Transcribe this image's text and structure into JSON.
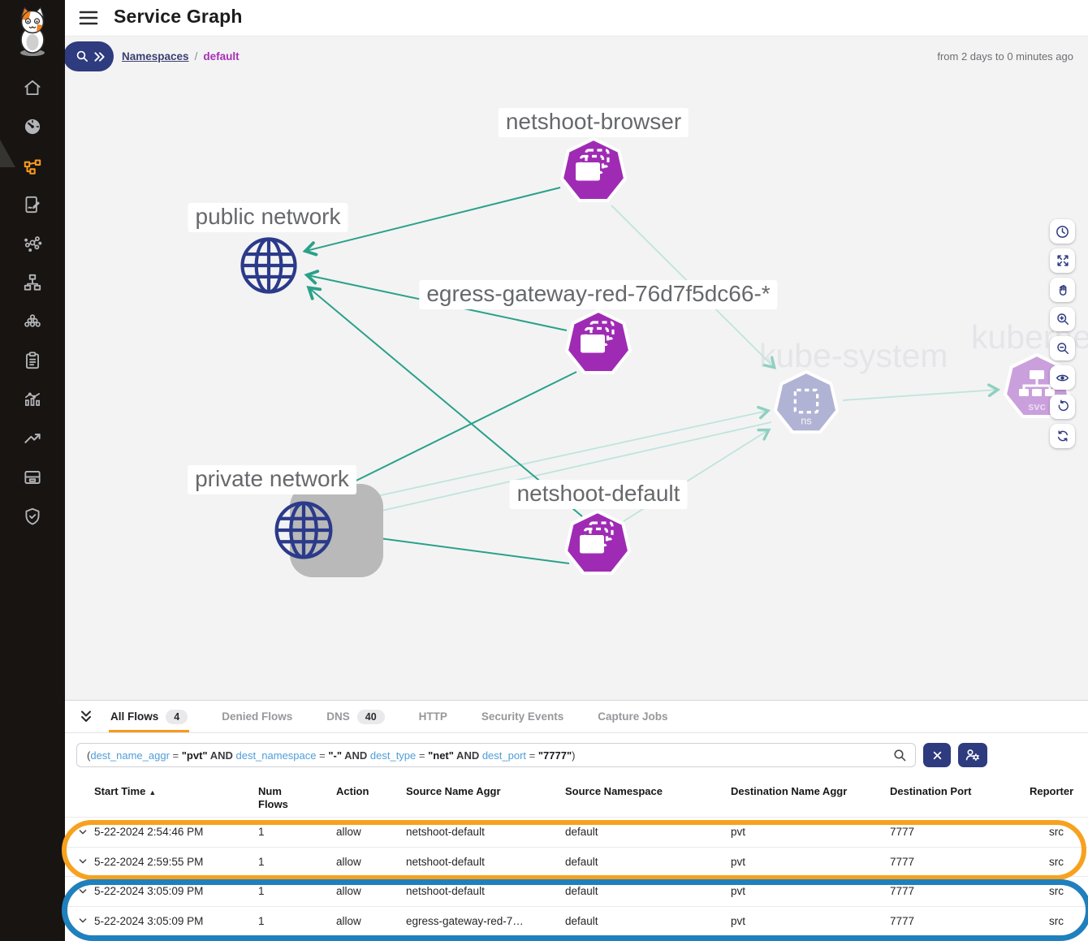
{
  "header": {
    "title": "Service Graph"
  },
  "breadcrumb": {
    "root": "Namespaces",
    "separator": "/",
    "current": "default"
  },
  "time_range": "from 2 days to 0 minutes ago",
  "sidebar": {
    "icons": [
      "home",
      "dashboard",
      "service-graph",
      "policies",
      "endpoints",
      "network-sets",
      "clusters",
      "compliance",
      "reports",
      "trends",
      "storage",
      "security"
    ],
    "active": "service-graph"
  },
  "graph": {
    "nodes": [
      {
        "id": "netshoot-browser",
        "label": "netshoot-browser",
        "type": "replicaset"
      },
      {
        "id": "public-network",
        "label": "public network",
        "type": "network"
      },
      {
        "id": "egress-gateway",
        "label": "egress-gateway-red-76d7f5dc66-*",
        "type": "replicaset"
      },
      {
        "id": "kube-system",
        "label": "kube-system",
        "type": "namespace",
        "sub": "ns"
      },
      {
        "id": "kubernetes",
        "label": "kubernetes",
        "type": "service",
        "sub": "svc"
      },
      {
        "id": "private-network",
        "label": "private network",
        "type": "network",
        "selected": true
      },
      {
        "id": "netshoot-default",
        "label": "netshoot-default",
        "type": "replicaset"
      }
    ]
  },
  "view_controls": [
    "time-settings",
    "fit-to-view",
    "pan",
    "zoom-in",
    "zoom-out",
    "visibility",
    "undo",
    "refresh"
  ],
  "panel": {
    "tabs": [
      {
        "label": "All Flows",
        "badge": "4",
        "active": true
      },
      {
        "label": "Denied Flows",
        "active": false
      },
      {
        "label": "DNS",
        "badge": "40",
        "active": false
      },
      {
        "label": "HTTP",
        "active": false
      },
      {
        "label": "Security Events",
        "active": false
      },
      {
        "label": "Capture Jobs",
        "active": false
      }
    ],
    "filter": {
      "tokens": [
        {
          "t": "(",
          "c": "p"
        },
        {
          "t": "dest_name_aggr",
          "c": "f"
        },
        {
          "t": " = ",
          "c": "o"
        },
        {
          "t": "\"pvt\"",
          "c": "v"
        },
        {
          "t": " AND ",
          "c": "k"
        },
        {
          "t": "dest_namespace",
          "c": "f"
        },
        {
          "t": " = ",
          "c": "o"
        },
        {
          "t": "\"-\"",
          "c": "v"
        },
        {
          "t": " AND ",
          "c": "k"
        },
        {
          "t": "dest_type",
          "c": "f"
        },
        {
          "t": " = ",
          "c": "o"
        },
        {
          "t": "\"net\"",
          "c": "v"
        },
        {
          "t": " AND ",
          "c": "k"
        },
        {
          "t": "dest_port",
          "c": "f"
        },
        {
          "t": " = ",
          "c": "o"
        },
        {
          "t": "\"7777\"",
          "c": "v"
        },
        {
          "t": ")",
          "c": "p"
        }
      ]
    }
  },
  "table": {
    "sort_arrow": "▲",
    "columns": [
      "Start Time",
      "Num Flows",
      "Action",
      "Source Name Aggr",
      "Source Namespace",
      "Destination Name Aggr",
      "Destination Port",
      "Reporter"
    ],
    "rows": [
      {
        "start_time": "5-22-2024 2:54:46 PM",
        "num_flows": "1",
        "action": "allow",
        "source_name": "netshoot-default",
        "source_namespace": "default",
        "dest_name": "pvt",
        "dest_port": "7777",
        "reporter": "src"
      },
      {
        "start_time": "5-22-2024 2:59:55 PM",
        "num_flows": "1",
        "action": "allow",
        "source_name": "netshoot-default",
        "source_namespace": "default",
        "dest_name": "pvt",
        "dest_port": "7777",
        "reporter": "src"
      },
      {
        "start_time": "5-22-2024 3:05:09 PM",
        "num_flows": "1",
        "action": "allow",
        "source_name": "netshoot-default",
        "source_namespace": "default",
        "dest_name": "pvt",
        "dest_port": "7777",
        "reporter": "src"
      },
      {
        "start_time": "5-22-2024 3:05:09 PM",
        "num_flows": "1",
        "action": "allow",
        "source_name": "egress-gateway-red-7…",
        "source_namespace": "default",
        "dest_name": "pvt",
        "dest_port": "7777",
        "reporter": "src"
      }
    ]
  },
  "annotations": {
    "orange": "#F6A21F",
    "blue": "#1F80BD"
  },
  "colors": {
    "accent_orange": "#F8991D",
    "navy": "#2E3B7E",
    "node_purple": "#9F2BB4",
    "node_namespace": "#B1B3D4",
    "node_service": "#C9A0DC",
    "globe_navy": "#2B3A8A",
    "edge_dark": "#2AA189",
    "edge_light": "#BFE4DC",
    "breadcrumb_purple": "#A62FB5"
  }
}
